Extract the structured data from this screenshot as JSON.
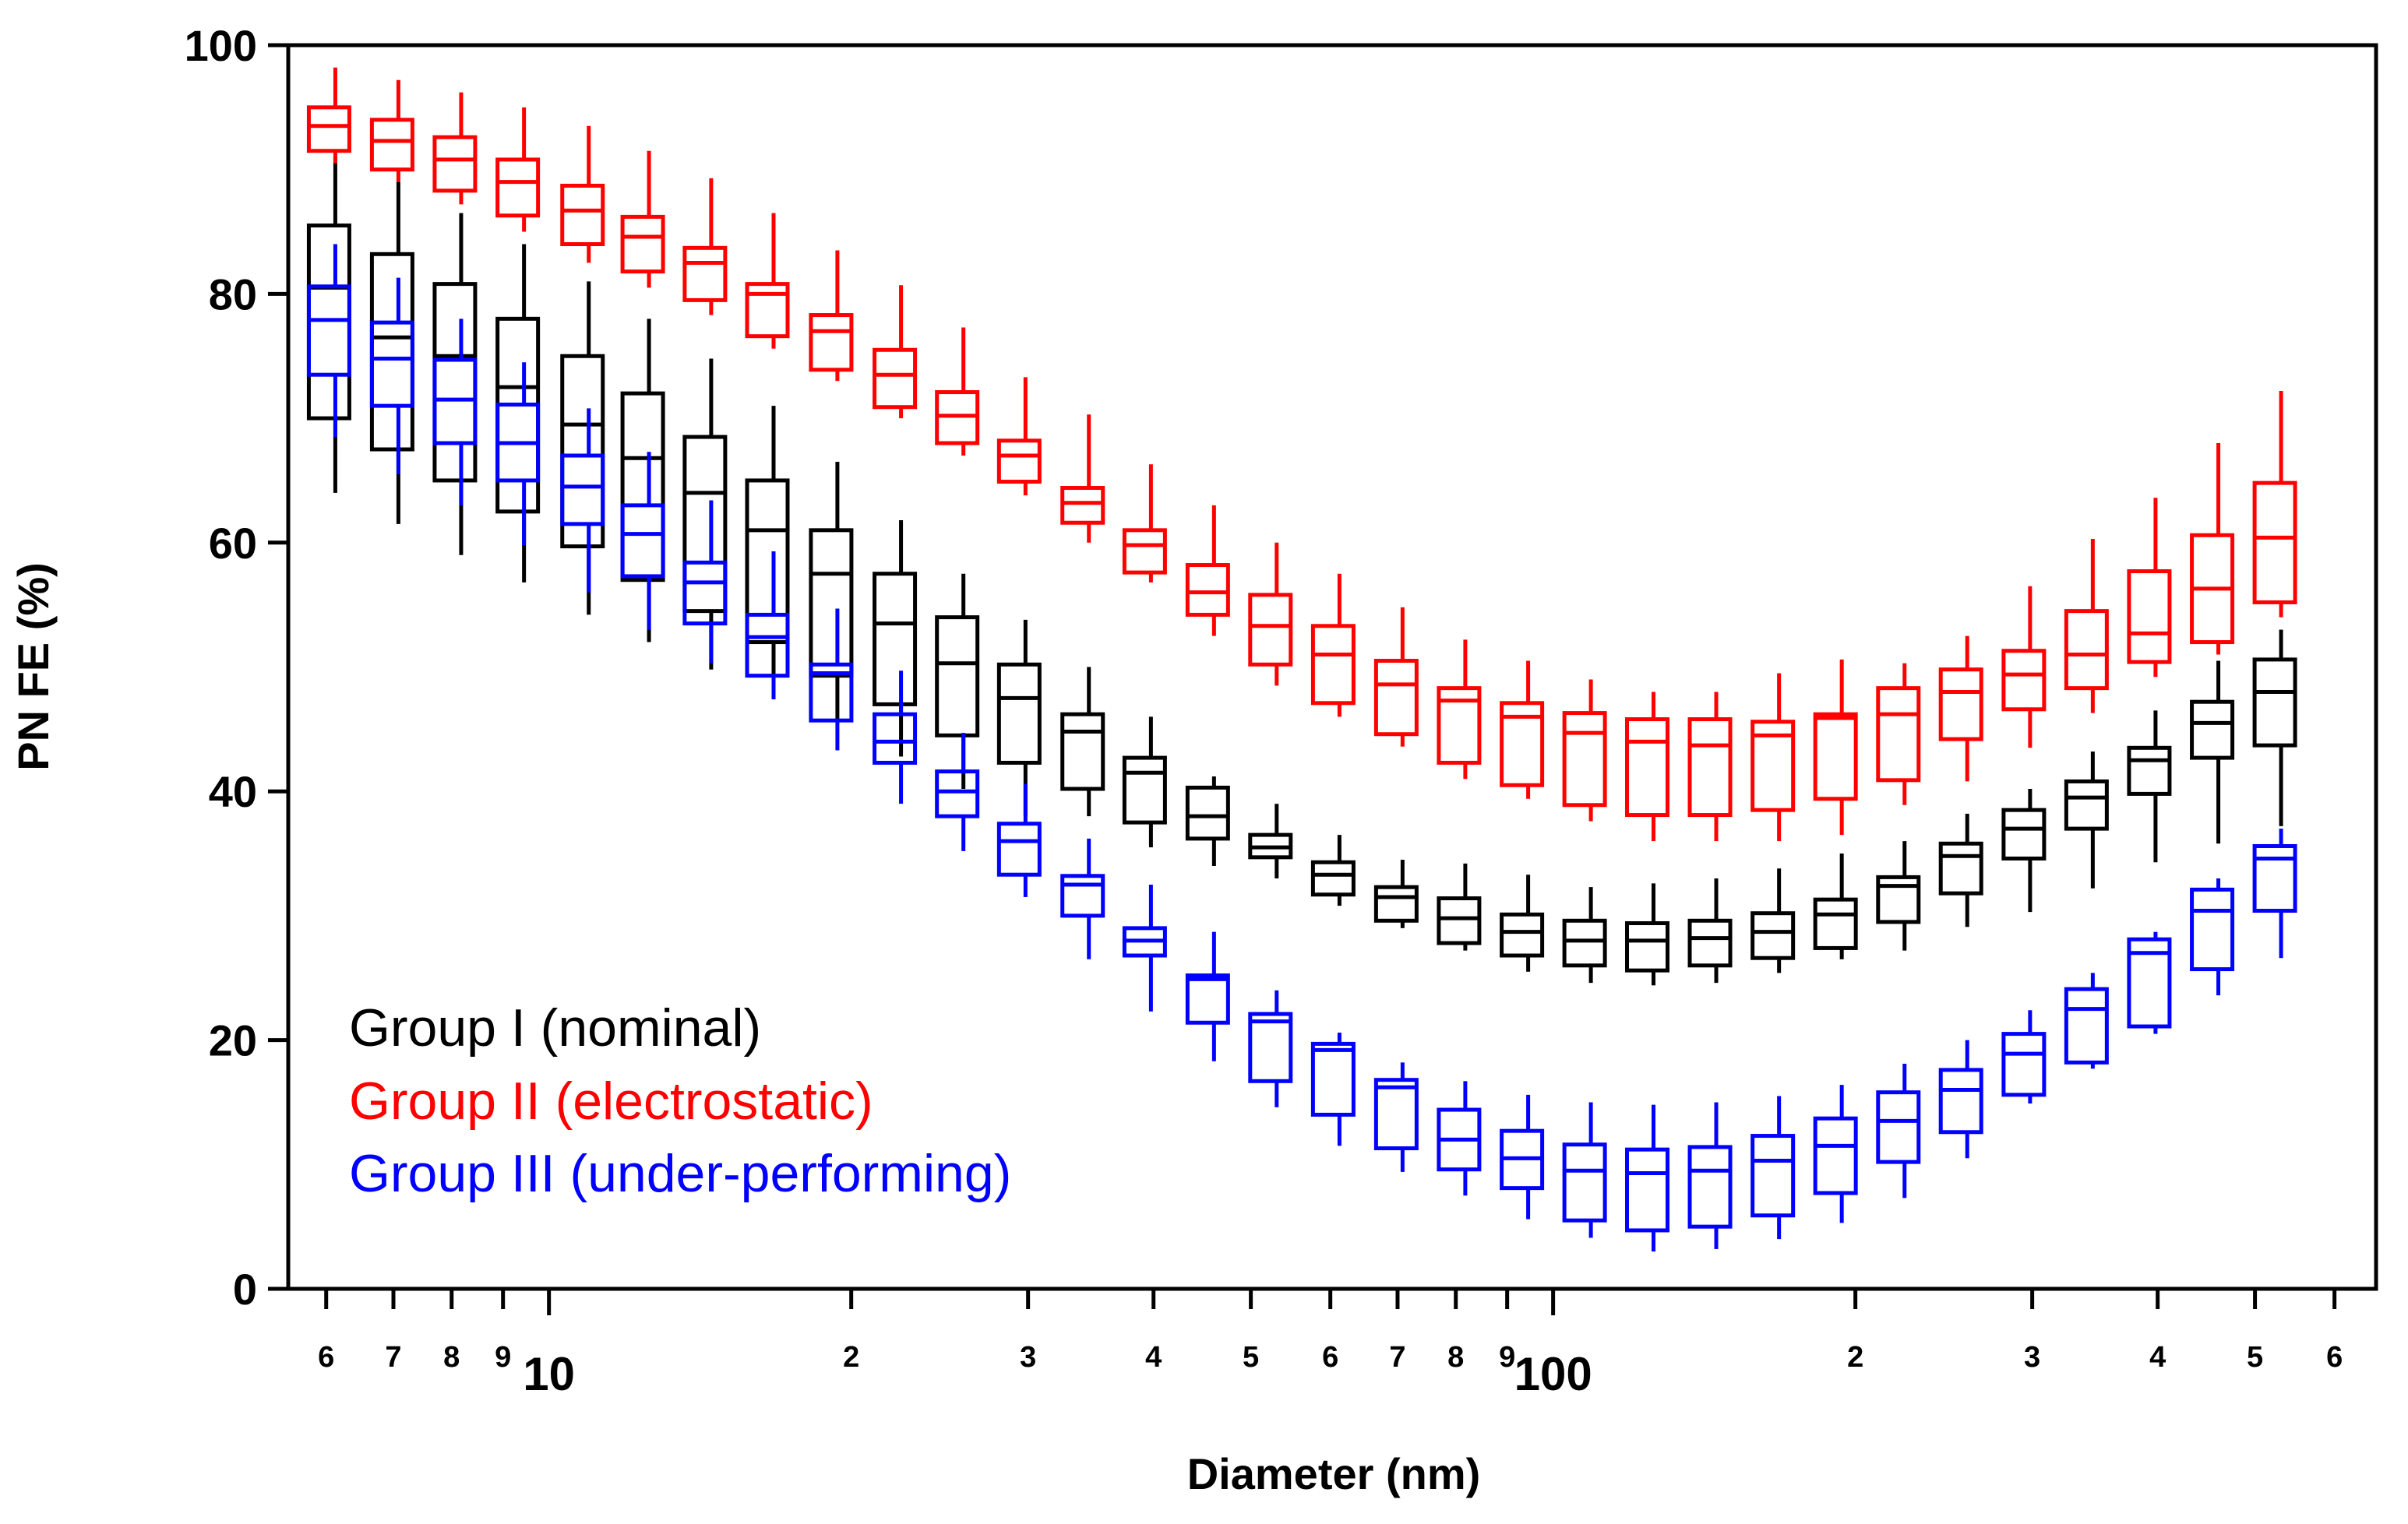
{
  "chart_data": {
    "type": "box",
    "xlabel": "Diameter (nm)",
    "ylabel": "PN FE (%)",
    "xscale": "log",
    "xlim": [
      5.5,
      660
    ],
    "ylim": [
      0,
      100
    ],
    "grid": false,
    "legend_position": "bottom-left",
    "y_ticks": [
      0,
      20,
      40,
      60,
      80,
      100
    ],
    "y_tick_labels": [
      "0",
      "20",
      "40",
      "60",
      "80",
      "100"
    ],
    "x_ticks": [
      {
        "value": 6,
        "label": "6",
        "major": false
      },
      {
        "value": 7,
        "label": "7",
        "major": false
      },
      {
        "value": 8,
        "label": "8",
        "major": false
      },
      {
        "value": 9,
        "label": "9",
        "major": false
      },
      {
        "value": 10,
        "label": "10",
        "major": true
      },
      {
        "value": 20,
        "label": "2",
        "major": false
      },
      {
        "value": 30,
        "label": "3",
        "major": false
      },
      {
        "value": 40,
        "label": "4",
        "major": false
      },
      {
        "value": 50,
        "label": "5",
        "major": false
      },
      {
        "value": 60,
        "label": "6",
        "major": false
      },
      {
        "value": 70,
        "label": "7",
        "major": false
      },
      {
        "value": 80,
        "label": "8",
        "major": false
      },
      {
        "value": 90,
        "label": "9",
        "major": false
      },
      {
        "value": 100,
        "label": "100",
        "major": true
      },
      {
        "value": 200,
        "label": "2",
        "major": false
      },
      {
        "value": 300,
        "label": "3",
        "major": false
      },
      {
        "value": 400,
        "label": "4",
        "major": false
      },
      {
        "value": 500,
        "label": "5",
        "major": false
      },
      {
        "value": 600,
        "label": "6",
        "major": false
      }
    ],
    "diameters_nm": [
      6.04,
      6.98,
      8.06,
      9.31,
      10.8,
      12.4,
      14.3,
      16.5,
      19.1,
      22.1,
      25.5,
      29.4,
      34.0,
      39.2,
      45.3,
      52.3,
      60.4,
      69.8,
      80.6,
      93.1,
      107.5,
      124.1,
      143.3,
      165.5,
      191.1,
      220.7,
      254.8,
      294.3,
      339.8,
      392.4,
      453.2,
      523.3
    ],
    "series": [
      {
        "name": "Group I (nominal)",
        "color": "#000000",
        "boxes": [
          {
            "min": 64,
            "q1": 70,
            "median": 80.5,
            "q3": 85.5,
            "max": 91
          },
          {
            "min": 61.5,
            "q1": 67.5,
            "median": 76.5,
            "q3": 83.2,
            "max": 89
          },
          {
            "min": 59,
            "q1": 65,
            "median": 75,
            "q3": 80.8,
            "max": 86.5
          },
          {
            "min": 56.8,
            "q1": 62.5,
            "median": 72.5,
            "q3": 78,
            "max": 84
          },
          {
            "min": 54.2,
            "q1": 59.7,
            "median": 69.5,
            "q3": 75,
            "max": 81
          },
          {
            "min": 52,
            "q1": 57,
            "median": 66.8,
            "q3": 72,
            "max": 78
          },
          {
            "min": 49.8,
            "q1": 54.5,
            "median": 64,
            "q3": 68.5,
            "max": 74.8
          },
          {
            "min": 47.5,
            "q1": 52,
            "median": 61,
            "q3": 65,
            "max": 71
          },
          {
            "min": 45.5,
            "q1": 49.3,
            "median": 57.5,
            "q3": 61,
            "max": 66.5
          },
          {
            "min": 42.8,
            "q1": 47,
            "median": 53.5,
            "q3": 57.5,
            "max": 61.8
          },
          {
            "min": 40.2,
            "q1": 44.5,
            "median": 50.3,
            "q3": 54,
            "max": 57.5
          },
          {
            "min": 38,
            "q1": 42.3,
            "median": 47.5,
            "q3": 50.2,
            "max": 53.8
          },
          {
            "min": 38,
            "q1": 40.2,
            "median": 44.8,
            "q3": 46.2,
            "max": 50
          },
          {
            "min": 35.5,
            "q1": 37.5,
            "median": 41.5,
            "q3": 42.7,
            "max": 46
          },
          {
            "min": 34,
            "q1": 36.2,
            "median": 38,
            "q3": 40.3,
            "max": 41.2
          },
          {
            "min": 33,
            "q1": 34.7,
            "median": 35.5,
            "q3": 36.5,
            "max": 39
          },
          {
            "min": 30.8,
            "q1": 31.7,
            "median": 33.3,
            "q3": 34.3,
            "max": 36.5
          },
          {
            "min": 29,
            "q1": 29.6,
            "median": 31.5,
            "q3": 32.3,
            "max": 34.5
          },
          {
            "min": 27.2,
            "q1": 27.8,
            "median": 29.8,
            "q3": 31.4,
            "max": 34.2
          },
          {
            "min": 25.5,
            "q1": 26.8,
            "median": 28.7,
            "q3": 30.1,
            "max": 33.3
          },
          {
            "min": 24.6,
            "q1": 26,
            "median": 28,
            "q3": 29.6,
            "max": 32.3
          },
          {
            "min": 24.4,
            "q1": 25.6,
            "median": 28,
            "q3": 29.4,
            "max": 32.6
          },
          {
            "min": 24.6,
            "q1": 26,
            "median": 28.2,
            "q3": 29.6,
            "max": 33
          },
          {
            "min": 25.4,
            "q1": 26.6,
            "median": 28.7,
            "q3": 30.2,
            "max": 33.8
          },
          {
            "min": 26.5,
            "q1": 27.4,
            "median": 30.1,
            "q3": 31.3,
            "max": 35
          },
          {
            "min": 27.2,
            "q1": 29.5,
            "median": 32.4,
            "q3": 33.1,
            "max": 36
          },
          {
            "min": 29.1,
            "q1": 31.8,
            "median": 34.8,
            "q3": 35.8,
            "max": 38.2
          },
          {
            "min": 30.3,
            "q1": 34.6,
            "median": 37,
            "q3": 38.5,
            "max": 40.2
          },
          {
            "min": 32.2,
            "q1": 37,
            "median": 39.5,
            "q3": 40.8,
            "max": 43.2
          },
          {
            "min": 34.3,
            "q1": 39.8,
            "median": 42.5,
            "q3": 43.5,
            "max": 46.5
          },
          {
            "min": 35.8,
            "q1": 42.7,
            "median": 45.5,
            "q3": 47.2,
            "max": 50.5
          },
          {
            "min": 37.2,
            "q1": 43.7,
            "median": 48,
            "q3": 50.6,
            "max": 53
          }
        ]
      },
      {
        "name": "Group II (electrostatic)",
        "color": "#ff0000",
        "boxes": [
          {
            "min": 90.5,
            "q1": 91.5,
            "median": 93.5,
            "q3": 95,
            "max": 98.2
          },
          {
            "min": 89,
            "q1": 90,
            "median": 92.3,
            "q3": 94,
            "max": 97.2
          },
          {
            "min": 87.2,
            "q1": 88.3,
            "median": 90.8,
            "q3": 92.6,
            "max": 96.2
          },
          {
            "min": 85,
            "q1": 86.3,
            "median": 89,
            "q3": 90.8,
            "max": 95
          },
          {
            "min": 82.5,
            "q1": 84,
            "median": 86.7,
            "q3": 88.7,
            "max": 93.5
          },
          {
            "min": 80.5,
            "q1": 81.8,
            "median": 84.6,
            "q3": 86.2,
            "max": 91.5
          },
          {
            "min": 78.3,
            "q1": 79.5,
            "median": 82.5,
            "q3": 83.7,
            "max": 89.3
          },
          {
            "min": 75.6,
            "q1": 76.6,
            "median": 80,
            "q3": 80.8,
            "max": 86.5
          },
          {
            "min": 73,
            "q1": 73.9,
            "median": 77,
            "q3": 78.3,
            "max": 83.5
          },
          {
            "min": 70,
            "q1": 70.9,
            "median": 73.5,
            "q3": 75.5,
            "max": 80.7
          },
          {
            "min": 67,
            "q1": 68,
            "median": 70.2,
            "q3": 72.1,
            "max": 77.3
          },
          {
            "min": 63.8,
            "q1": 64.9,
            "median": 67,
            "q3": 68.2,
            "max": 73.3
          },
          {
            "min": 60,
            "q1": 61.6,
            "median": 63.2,
            "q3": 64.4,
            "max": 70.3
          },
          {
            "min": 56.8,
            "q1": 57.6,
            "median": 59.8,
            "q3": 61,
            "max": 66.3
          },
          {
            "min": 52.5,
            "q1": 54.2,
            "median": 56,
            "q3": 58.2,
            "max": 63
          },
          {
            "min": 48.5,
            "q1": 50.2,
            "median": 53.3,
            "q3": 55.8,
            "max": 60
          },
          {
            "min": 46,
            "q1": 47.1,
            "median": 51,
            "q3": 53.3,
            "max": 57.5
          },
          {
            "min": 43.6,
            "q1": 44.6,
            "median": 48.6,
            "q3": 50.5,
            "max": 54.8
          },
          {
            "min": 41,
            "q1": 42.3,
            "median": 47.3,
            "q3": 48.3,
            "max": 52.2
          },
          {
            "min": 39.4,
            "q1": 40.5,
            "median": 46,
            "q3": 47.1,
            "max": 50.5
          },
          {
            "min": 37.6,
            "q1": 38.9,
            "median": 44.7,
            "q3": 46.3,
            "max": 49
          },
          {
            "min": 36,
            "q1": 38.1,
            "median": 44,
            "q3": 45.8,
            "max": 48
          },
          {
            "min": 36,
            "q1": 38.1,
            "median": 43.7,
            "q3": 45.8,
            "max": 48
          },
          {
            "min": 36,
            "q1": 38.5,
            "median": 44.5,
            "q3": 45.6,
            "max": 49.5
          },
          {
            "min": 36.5,
            "q1": 39.4,
            "median": 45.9,
            "q3": 46.2,
            "max": 50.6
          },
          {
            "min": 38.9,
            "q1": 40.9,
            "median": 46.2,
            "q3": 48.3,
            "max": 50.3
          },
          {
            "min": 40.8,
            "q1": 44.2,
            "median": 48,
            "q3": 49.8,
            "max": 52.5
          },
          {
            "min": 43.5,
            "q1": 46.6,
            "median": 49.4,
            "q3": 51.3,
            "max": 56.5
          },
          {
            "min": 46.3,
            "q1": 48.3,
            "median": 51,
            "q3": 54.5,
            "max": 60.3
          },
          {
            "min": 49.2,
            "q1": 50.4,
            "median": 52.7,
            "q3": 57.7,
            "max": 63.6
          },
          {
            "min": 51,
            "q1": 52,
            "median": 56.3,
            "q3": 60.6,
            "max": 68
          },
          {
            "min": 54,
            "q1": 55.2,
            "median": 60.4,
            "q3": 64.8,
            "max": 72.2
          }
        ]
      },
      {
        "name": "Group III (under-performing)",
        "color": "#0000ff",
        "boxes": [
          {
            "min": 68.5,
            "q1": 73.5,
            "median": 77.9,
            "q3": 80.6,
            "max": 84
          },
          {
            "min": 65.5,
            "q1": 71,
            "median": 74.8,
            "q3": 77.7,
            "max": 81.3
          },
          {
            "min": 63,
            "q1": 68,
            "median": 71.5,
            "q3": 74.7,
            "max": 78
          },
          {
            "min": 59.8,
            "q1": 65,
            "median": 68,
            "q3": 71.1,
            "max": 74.5
          },
          {
            "min": 56,
            "q1": 61.5,
            "median": 64.5,
            "q3": 67,
            "max": 70.8
          },
          {
            "min": 53,
            "q1": 57.3,
            "median": 60.7,
            "q3": 63,
            "max": 67.3
          },
          {
            "min": 50.3,
            "q1": 53.5,
            "median": 56.8,
            "q3": 58.4,
            "max": 63.4
          },
          {
            "min": 47.4,
            "q1": 49.3,
            "median": 52.4,
            "q3": 54.2,
            "max": 59.3
          },
          {
            "min": 43.3,
            "q1": 45.7,
            "median": 49.5,
            "q3": 50.2,
            "max": 54.7
          },
          {
            "min": 39,
            "q1": 42.3,
            "median": 44,
            "q3": 46.2,
            "max": 49.7
          },
          {
            "min": 35.2,
            "q1": 38,
            "median": 40,
            "q3": 41.6,
            "max": 44.7
          },
          {
            "min": 31.5,
            "q1": 33.3,
            "median": 36,
            "q3": 37.4,
            "max": 40.6
          },
          {
            "min": 26.5,
            "q1": 30,
            "median": 32.5,
            "q3": 33.2,
            "max": 36.2
          },
          {
            "min": 22.3,
            "q1": 26.8,
            "median": 28,
            "q3": 29,
            "max": 32.5
          },
          {
            "min": 18.3,
            "q1": 21.4,
            "median": 24.9,
            "q3": 25.2,
            "max": 28.7
          },
          {
            "min": 14.6,
            "q1": 16.7,
            "median": 21.5,
            "q3": 22.1,
            "max": 24
          },
          {
            "min": 11.5,
            "q1": 14,
            "median": 19.2,
            "q3": 19.7,
            "max": 20.6
          },
          {
            "min": 9.4,
            "q1": 11.3,
            "median": 16.2,
            "q3": 16.8,
            "max": 18.2
          },
          {
            "min": 7.5,
            "q1": 9.6,
            "median": 12,
            "q3": 14.4,
            "max": 16.7
          },
          {
            "min": 5.6,
            "q1": 8.1,
            "median": 10.5,
            "q3": 12.7,
            "max": 15.6
          },
          {
            "min": 4.1,
            "q1": 5.5,
            "median": 9.5,
            "q3": 11.6,
            "max": 15
          },
          {
            "min": 3,
            "q1": 4.7,
            "median": 9.3,
            "q3": 11.2,
            "max": 14.8
          },
          {
            "min": 3.2,
            "q1": 5,
            "median": 9.5,
            "q3": 11.4,
            "max": 15
          },
          {
            "min": 4,
            "q1": 5.9,
            "median": 10.3,
            "q3": 12.3,
            "max": 15.5
          },
          {
            "min": 5.3,
            "q1": 7.7,
            "median": 11.5,
            "q3": 13.7,
            "max": 16.4
          },
          {
            "min": 7.3,
            "q1": 10.2,
            "median": 13.5,
            "q3": 15.8,
            "max": 18.1
          },
          {
            "min": 10.5,
            "q1": 12.6,
            "median": 16,
            "q3": 17.6,
            "max": 20
          },
          {
            "min": 14.9,
            "q1": 15.6,
            "median": 18.9,
            "q3": 20.5,
            "max": 22.4
          },
          {
            "min": 17.7,
            "q1": 18.2,
            "median": 22.5,
            "q3": 24.1,
            "max": 25.4
          },
          {
            "min": 20.5,
            "q1": 21.1,
            "median": 27,
            "q3": 28.1,
            "max": 28.7
          },
          {
            "min": 23.6,
            "q1": 25.7,
            "median": 30.4,
            "q3": 32.1,
            "max": 33
          },
          {
            "min": 26.6,
            "q1": 30.4,
            "median": 34.6,
            "q3": 35.6,
            "max": 37
          }
        ]
      }
    ],
    "legend": [
      {
        "label": "Group I (nominal)",
        "color": "#000000"
      },
      {
        "label": "Group II (electrostatic)",
        "color": "#ff0000"
      },
      {
        "label": "Group III (under-performing)",
        "color": "#0000ff"
      }
    ]
  }
}
